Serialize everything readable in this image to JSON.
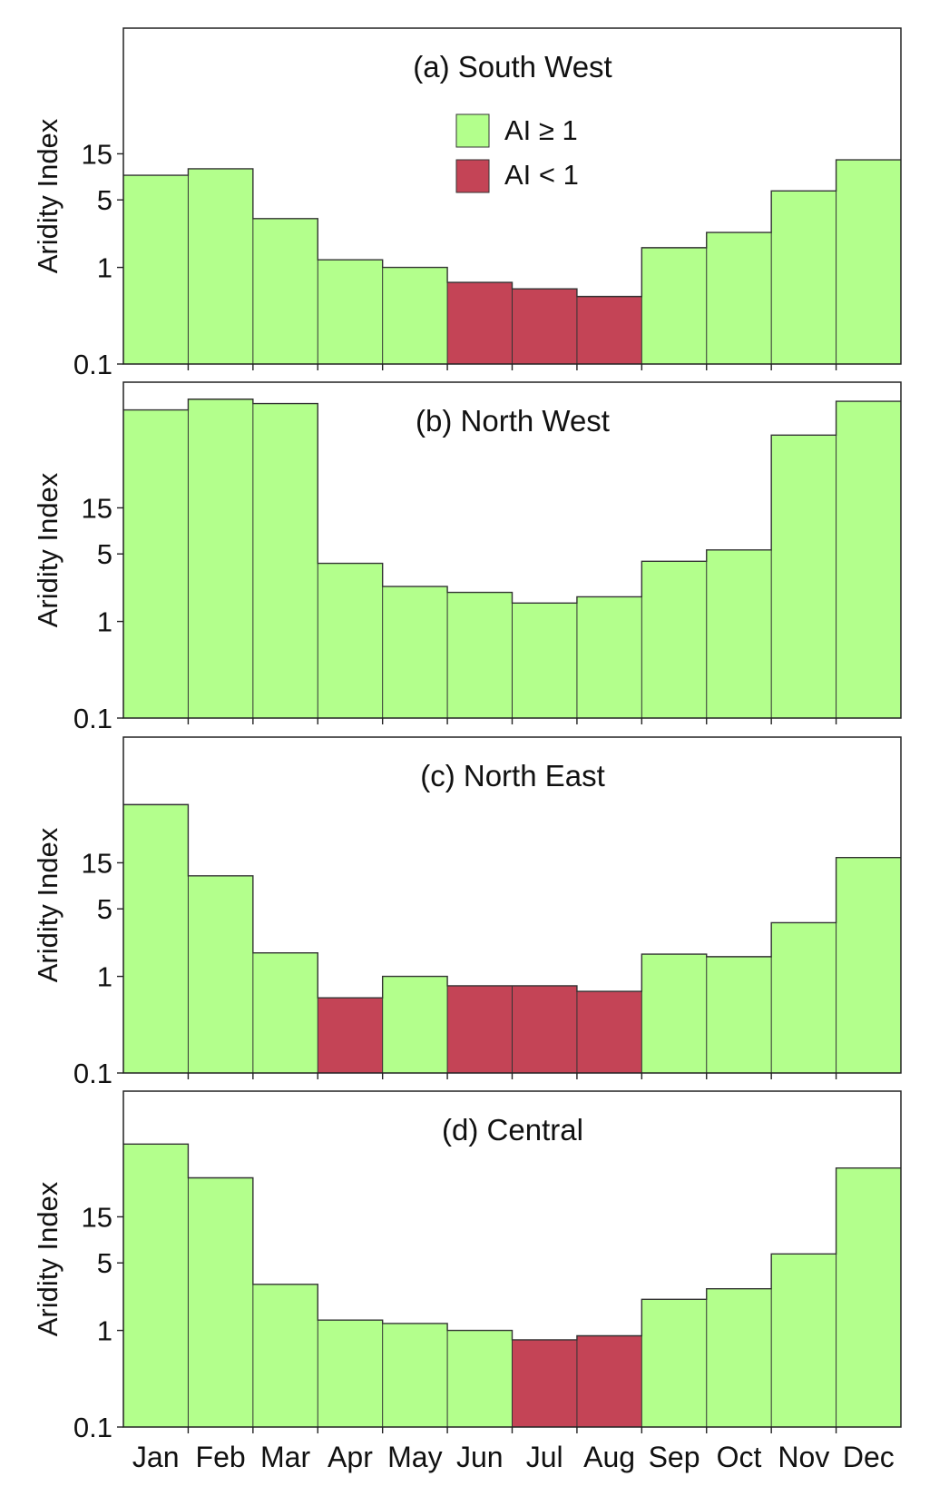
{
  "chart_data": [
    {
      "type": "bar",
      "title": "(a) South West",
      "ylabel": "Aridity Index",
      "xlabel": "",
      "yscale": "log",
      "ylim": [
        0.1,
        300
      ],
      "yticks": [
        0.1,
        1,
        5,
        15
      ],
      "ytick_labels": [
        "0.1",
        "1",
        "5",
        "15"
      ],
      "categories": [
        "Jan",
        "Feb",
        "Mar",
        "Apr",
        "May",
        "Jun",
        "Jul",
        "Aug",
        "Sep",
        "Oct",
        "Nov",
        "Dec"
      ],
      "values": [
        9,
        10.5,
        3.2,
        1.2,
        1.0,
        0.7,
        0.6,
        0.5,
        1.6,
        2.3,
        6.2,
        13
      ]
    },
    {
      "type": "bar",
      "title": "(b) North West",
      "ylabel": "Aridity Index",
      "xlabel": "",
      "yscale": "log",
      "ylim": [
        0.1,
        300
      ],
      "yticks": [
        0.1,
        1,
        5,
        15
      ],
      "ytick_labels": [
        "0.1",
        "1",
        "5",
        "15"
      ],
      "categories": [
        "Jan",
        "Feb",
        "Mar",
        "Apr",
        "May",
        "Jun",
        "Jul",
        "Aug",
        "Sep",
        "Oct",
        "Nov",
        "Dec"
      ],
      "values": [
        155,
        200,
        180,
        4,
        2.3,
        2.0,
        1.55,
        1.8,
        4.2,
        5.5,
        85,
        190
      ]
    },
    {
      "type": "bar",
      "title": "(c) North East",
      "ylabel": "Aridity Index",
      "xlabel": "",
      "yscale": "log",
      "ylim": [
        0.1,
        300
      ],
      "yticks": [
        0.1,
        1,
        5,
        15
      ],
      "ytick_labels": [
        "0.1",
        "1",
        "5",
        "15"
      ],
      "categories": [
        "Jan",
        "Feb",
        "Mar",
        "Apr",
        "May",
        "Jun",
        "Jul",
        "Aug",
        "Sep",
        "Oct",
        "Nov",
        "Dec"
      ],
      "values": [
        60,
        11,
        1.75,
        0.6,
        1.0,
        0.8,
        0.8,
        0.7,
        1.7,
        1.6,
        3.6,
        17
      ]
    },
    {
      "type": "bar",
      "title": "(d) Central",
      "ylabel": "Aridity Index",
      "xlabel": "",
      "yscale": "log",
      "ylim": [
        0.1,
        300
      ],
      "yticks": [
        0.1,
        1,
        5,
        15
      ],
      "ytick_labels": [
        "0.1",
        "1",
        "5",
        "15"
      ],
      "categories": [
        "Jan",
        "Feb",
        "Mar",
        "Apr",
        "May",
        "Jun",
        "Jul",
        "Aug",
        "Sep",
        "Oct",
        "Nov",
        "Dec"
      ],
      "values": [
        85,
        38,
        3.0,
        1.28,
        1.18,
        1.0,
        0.8,
        0.88,
        2.1,
        2.7,
        6.2,
        48
      ]
    }
  ],
  "legend": {
    "placement": "top-center of panel (a)",
    "items": [
      {
        "label": "AI ≥ 1",
        "color": "#b3ff8c"
      },
      {
        "label": "AI < 1",
        "color": "#c44456"
      }
    ]
  },
  "colors": {
    "ai_ge_1": "#b3ff8c",
    "ai_lt_1": "#c44456",
    "outline": "#333333",
    "frame": "#222222"
  }
}
